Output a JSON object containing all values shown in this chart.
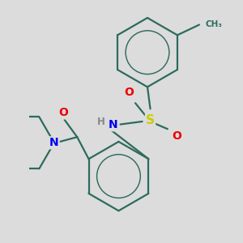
{
  "background_color": "#dcdcdc",
  "bond_color": "#2d6b5e",
  "bond_width": 1.6,
  "atom_colors": {
    "N": "#0000ee",
    "O": "#ee0000",
    "S": "#cccc00",
    "H": "#888888",
    "CH3": "#2d6b5e"
  },
  "figsize": [
    3.0,
    3.0
  ],
  "dpi": 100
}
